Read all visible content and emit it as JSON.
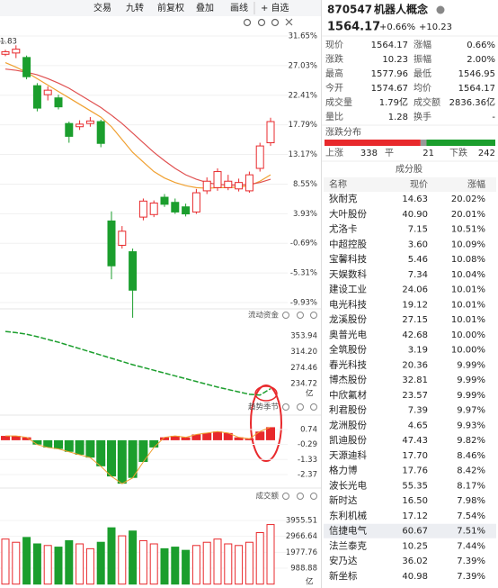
{
  "toolbar": [
    "交易",
    "九转",
    "前复权",
    "叠加",
    "画线",
    "+ 自选"
  ],
  "quote": {
    "code": "870547",
    "name": "机器人概念",
    "price": "1564.17",
    "change_pct": "+0.66%",
    "change": "+10.23"
  },
  "stats": [
    [
      {
        "label": "现价",
        "value": "1564.17",
        "color": "#e8292c"
      },
      {
        "label": "涨幅",
        "value": "0.66%",
        "color": "#e8292c"
      }
    ],
    [
      {
        "label": "涨跌",
        "value": "10.23",
        "color": "#e8292c"
      },
      {
        "label": "振幅",
        "value": "2.00%",
        "color": "#222222"
      }
    ],
    [
      {
        "label": "最高",
        "value": "1577.96",
        "color": "#e8292c"
      },
      {
        "label": "最低",
        "value": "1546.95",
        "color": "#1b9e2d"
      }
    ],
    [
      {
        "label": "今开",
        "value": "1574.67",
        "color": "#e8292c"
      },
      {
        "label": "均价",
        "value": "1564.17",
        "color": "#e8292c"
      }
    ],
    [
      {
        "label": "成交量",
        "value": "1.79亿",
        "color": "#222222"
      },
      {
        "label": "成交额",
        "value": "2836.36亿",
        "color": "#222222"
      }
    ],
    [
      {
        "label": "量比",
        "value": "1.28",
        "color": "#222222"
      },
      {
        "label": "换手",
        "value": "-",
        "color": "#222222"
      }
    ]
  ],
  "distribution": {
    "title": "涨跌分布",
    "up_label": "上涨",
    "up": 338,
    "flat_label": "平",
    "flat": 21,
    "down_label": "下跌",
    "down": 242
  },
  "constituents": {
    "title": "成分股",
    "columns": [
      "名称",
      "现价",
      "涨幅"
    ],
    "color": "#e8292c",
    "highlight_row": 22,
    "rows": [
      [
        "狄耐克",
        "14.63",
        "20.02%"
      ],
      [
        "大叶股份",
        "40.90",
        "20.01%"
      ],
      [
        "尤洛卡",
        "7.15",
        "10.51%"
      ],
      [
        "中超控股",
        "3.60",
        "10.09%"
      ],
      [
        "宝馨科技",
        "5.46",
        "10.08%"
      ],
      [
        "天娱数科",
        "7.34",
        "10.04%"
      ],
      [
        "建设工业",
        "24.06",
        "10.01%"
      ],
      [
        "电光科技",
        "19.12",
        "10.01%"
      ],
      [
        "龙溪股份",
        "27.15",
        "10.01%"
      ],
      [
        "奥普光电",
        "42.68",
        "10.00%"
      ],
      [
        "全筑股份",
        "3.19",
        "10.00%"
      ],
      [
        "春光科技",
        "20.36",
        "9.99%"
      ],
      [
        "博杰股份",
        "32.81",
        "9.99%"
      ],
      [
        "中欣氟材",
        "23.57",
        "9.99%"
      ],
      [
        "利君股份",
        "7.39",
        "9.97%"
      ],
      [
        "龙洲股份",
        "4.65",
        "9.93%"
      ],
      [
        "凯迪股份",
        "47.43",
        "9.82%"
      ],
      [
        "天源迪科",
        "17.70",
        "8.46%"
      ],
      [
        "格力博",
        "17.76",
        "8.42%"
      ],
      [
        "波长光电",
        "55.35",
        "8.17%"
      ],
      [
        "新时达",
        "16.50",
        "7.98%"
      ],
      [
        "东利机械",
        "17.12",
        "7.54%"
      ],
      [
        "信捷电气",
        "60.67",
        "7.51%"
      ],
      [
        "法兰泰克",
        "10.25",
        "7.44%"
      ],
      [
        "安乃达",
        "36.02",
        "7.39%"
      ],
      [
        "新坐标",
        "40.98",
        "7.39%"
      ]
    ]
  },
  "kline": {
    "max_label": "1.83",
    "yticks": [
      {
        "value": 31.65,
        "label": "31.65%"
      },
      {
        "value": 27.03,
        "label": "27.03%"
      },
      {
        "value": 22.41,
        "label": "22.41%"
      },
      {
        "value": 17.79,
        "label": "17.79%"
      },
      {
        "value": 13.17,
        "label": "13.17%"
      },
      {
        "value": 8.55,
        "label": "8.55%"
      },
      {
        "value": 3.93,
        "label": "3.93%"
      },
      {
        "value": -0.69,
        "label": "-0.69%"
      },
      {
        "value": -5.31,
        "label": "-5.31%"
      },
      {
        "value": -9.93,
        "label": "-9.93%"
      }
    ],
    "up_color": "#e8292c",
    "down_color": "#1b9e2d",
    "candles": [
      [
        28.8,
        29.2,
        29.5,
        28.5
      ],
      [
        29.0,
        29.6,
        30.2,
        28.2
      ],
      [
        28.3,
        25.3,
        28.6,
        24.9
      ],
      [
        23.9,
        20.4,
        24.3,
        19.9
      ],
      [
        22.5,
        23.2,
        23.8,
        21.6
      ],
      [
        22.0,
        20.6,
        22.5,
        20.2
      ],
      [
        18.0,
        16.0,
        18.3,
        15.0
      ],
      [
        17.5,
        17.9,
        18.5,
        17.0
      ],
      [
        18.0,
        18.4,
        19.0,
        17.5
      ],
      [
        18.3,
        14.9,
        18.6,
        14.3
      ],
      [
        2.8,
        -4.2,
        4.3,
        -6.3
      ],
      [
        -1.0,
        1.2,
        2.0,
        -1.5
      ],
      [
        -2.0,
        -8.0,
        -1.5,
        -12.3
      ],
      [
        3.4,
        5.9,
        6.3,
        2.9
      ],
      [
        3.8,
        5.6,
        6.0,
        3.4
      ],
      [
        6.5,
        5.4,
        7.0,
        5.0
      ],
      [
        5.7,
        4.2,
        6.3,
        3.9
      ],
      [
        5.0,
        3.9,
        5.5,
        3.5
      ],
      [
        4.2,
        7.2,
        7.8,
        3.9
      ],
      [
        7.5,
        9.0,
        9.6,
        7.0
      ],
      [
        8.0,
        10.5,
        11.0,
        7.5
      ],
      [
        8.0,
        9.0,
        10.0,
        7.6
      ],
      [
        7.8,
        8.8,
        9.4,
        7.4
      ],
      [
        7.5,
        10.0,
        10.5,
        7.2
      ],
      [
        11.0,
        14.5,
        15.0,
        10.5
      ],
      [
        15.0,
        18.3,
        18.9,
        14.5
      ]
    ],
    "ma": [
      {
        "color": "#f0a030",
        "values": [
          27.5,
          26.8,
          26,
          25,
          24,
          23,
          22,
          21,
          20,
          19,
          17.5,
          15.5,
          13.5,
          12,
          10.5,
          9.5,
          8.8,
          8.3,
          8.0,
          7.9,
          8.0,
          8.0,
          8.1,
          8.3,
          9.0,
          10.0
        ]
      },
      {
        "color": "#e05050",
        "values": [
          26.5,
          26.3,
          26,
          25.6,
          25,
          24.3,
          23.5,
          22.5,
          21.5,
          20.5,
          19.3,
          18,
          16.5,
          15,
          13.5,
          12.2,
          11,
          10,
          9.3,
          8.8,
          8.5,
          8.4,
          8.4,
          8.5,
          8.8,
          9.3
        ]
      }
    ]
  },
  "flow": {
    "title": "流动资金",
    "unit": "亿",
    "color": "#1b9e2d",
    "yticks": [
      {
        "value": 353.94,
        "label": "353.94"
      },
      {
        "value": 314.2,
        "label": "314.20"
      },
      {
        "value": 274.46,
        "label": "274.46"
      },
      {
        "value": 234.72,
        "label": "234.72"
      }
    ],
    "values": [
      365,
      362,
      358,
      352,
      345,
      338,
      330,
      322,
      314,
      306,
      298,
      290,
      282,
      275,
      268,
      261,
      254,
      247,
      240,
      233,
      226,
      220,
      214,
      208,
      206,
      222
    ]
  },
  "indicator": {
    "title": "趋势季节",
    "yticks": [
      0.74,
      -0.29,
      -1.33,
      -2.37
    ],
    "values": [
      0.3,
      0.3,
      0.2,
      -0.3,
      -0.5,
      -0.6,
      -0.8,
      -1.0,
      -1.2,
      -1.8,
      -2.5,
      -3.0,
      -2.6,
      -1.5,
      -0.5,
      0.2,
      0.3,
      0.2,
      0.4,
      0.5,
      0.6,
      0.5,
      0.2,
      0.1,
      0.6,
      0.9
    ]
  },
  "volume": {
    "title": "成交额",
    "unit": "亿",
    "yticks": [
      {
        "value": 3955.51,
        "label": "3955.51"
      },
      {
        "value": 2966.64,
        "label": "2966.64"
      },
      {
        "value": 1977.76,
        "label": "1977.76"
      },
      {
        "value": 988.88,
        "label": "988.88"
      }
    ],
    "values": [
      2800,
      2600,
      2900,
      2500,
      2400,
      2300,
      2700,
      2500,
      2200,
      2600,
      3500,
      3000,
      3300,
      2700,
      2500,
      2200,
      2300,
      2100,
      2400,
      2600,
      2800,
      2500,
      2400,
      2600,
      3200,
      3700
    ]
  }
}
